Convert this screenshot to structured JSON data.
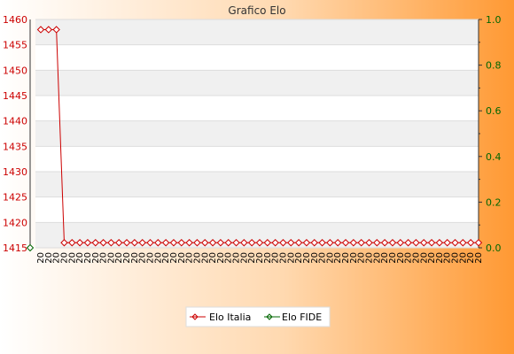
{
  "chart_data": {
    "type": "line",
    "title": "Grafico Elo",
    "xlabel": "",
    "ylabel": "",
    "y_left": {
      "min": 1415,
      "max": 1460,
      "ticks": [
        1415,
        1420,
        1425,
        1430,
        1435,
        1440,
        1445,
        1450,
        1455,
        1460
      ],
      "color": "#cc0000"
    },
    "y_right": {
      "min": 0.0,
      "max": 1.0,
      "ticks": [
        "0.0",
        "0.2",
        "0.4",
        "0.6",
        "0.8",
        "1.0"
      ],
      "color": "#006600"
    },
    "point_count": 57,
    "x_tick_label_prefix": "20",
    "series": [
      {
        "name": "Elo Italia",
        "axis": "left",
        "color": "#cc0000",
        "values": [
          1458,
          1458,
          1458,
          1416,
          1416,
          1416,
          1416,
          1416,
          1416,
          1416,
          1416,
          1416,
          1416,
          1416,
          1416,
          1416,
          1416,
          1416,
          1416,
          1416,
          1416,
          1416,
          1416,
          1416,
          1416,
          1416,
          1416,
          1416,
          1416,
          1416,
          1416,
          1416,
          1416,
          1416,
          1416,
          1416,
          1416,
          1416,
          1416,
          1416,
          1416,
          1416,
          1416,
          1416,
          1416,
          1416,
          1416,
          1416,
          1416,
          1416,
          1416,
          1416,
          1416,
          1416,
          1416,
          1416,
          1416
        ]
      },
      {
        "name": "Elo FIDE",
        "axis": "right",
        "color": "#006600",
        "values": [
          0
        ]
      }
    ],
    "legend": {
      "position": "bottom",
      "items": [
        "Elo Italia",
        "Elo FIDE"
      ]
    },
    "grid": true,
    "background_gradient": [
      "#ffffff",
      "#ff9933"
    ]
  }
}
